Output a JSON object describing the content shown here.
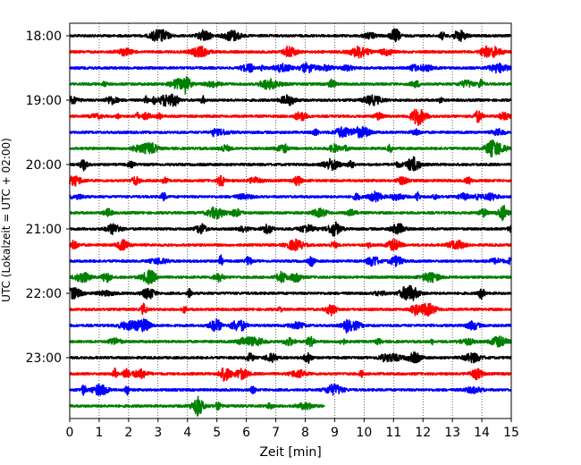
{
  "chart_data": {
    "type": "line",
    "title": "",
    "xlabel": "Zeit  [min]",
    "ylabel": "UTC (Lokalzeit = UTC + 02:00)",
    "xlim": [
      0,
      15
    ],
    "x_ticks": [
      "0",
      "1",
      "2",
      "3",
      "4",
      "5",
      "6",
      "7",
      "8",
      "9",
      "10",
      "11",
      "12",
      "13",
      "14",
      "15"
    ],
    "y_ticks": [
      "18:00",
      "19:00",
      "20:00",
      "21:00",
      "22:00",
      "23:00"
    ],
    "grid": "vertical dotted",
    "colors": [
      "#000000",
      "#ff0000",
      "#0000ff",
      "#008000"
    ],
    "traces": [
      {
        "start": "18:00",
        "duration_min": 15,
        "color": "#000000"
      },
      {
        "start": "18:15",
        "duration_min": 15,
        "color": "#ff0000"
      },
      {
        "start": "18:30",
        "duration_min": 15,
        "color": "#0000ff"
      },
      {
        "start": "18:45",
        "duration_min": 15,
        "color": "#008000"
      },
      {
        "start": "19:00",
        "duration_min": 15,
        "color": "#000000"
      },
      {
        "start": "19:15",
        "duration_min": 15,
        "color": "#ff0000"
      },
      {
        "start": "19:30",
        "duration_min": 15,
        "color": "#0000ff"
      },
      {
        "start": "19:45",
        "duration_min": 15,
        "color": "#008000"
      },
      {
        "start": "20:00",
        "duration_min": 15,
        "color": "#000000"
      },
      {
        "start": "20:15",
        "duration_min": 15,
        "color": "#ff0000"
      },
      {
        "start": "20:30",
        "duration_min": 15,
        "color": "#0000ff"
      },
      {
        "start": "20:45",
        "duration_min": 15,
        "color": "#008000"
      },
      {
        "start": "21:00",
        "duration_min": 15,
        "color": "#000000"
      },
      {
        "start": "21:15",
        "duration_min": 15,
        "color": "#ff0000"
      },
      {
        "start": "21:30",
        "duration_min": 15,
        "color": "#0000ff"
      },
      {
        "start": "21:45",
        "duration_min": 15,
        "color": "#008000"
      },
      {
        "start": "22:00",
        "duration_min": 15,
        "color": "#000000"
      },
      {
        "start": "22:15",
        "duration_min": 15,
        "color": "#ff0000"
      },
      {
        "start": "22:30",
        "duration_min": 15,
        "color": "#0000ff"
      },
      {
        "start": "22:45",
        "duration_min": 15,
        "color": "#008000"
      },
      {
        "start": "23:00",
        "duration_min": 15,
        "color": "#000000"
      },
      {
        "start": "23:15",
        "duration_min": 15,
        "color": "#ff0000"
      },
      {
        "start": "23:30",
        "duration_min": 15,
        "color": "#0000ff"
      },
      {
        "start": "23:45",
        "duration_min": 8.65,
        "color": "#008000"
      }
    ]
  }
}
